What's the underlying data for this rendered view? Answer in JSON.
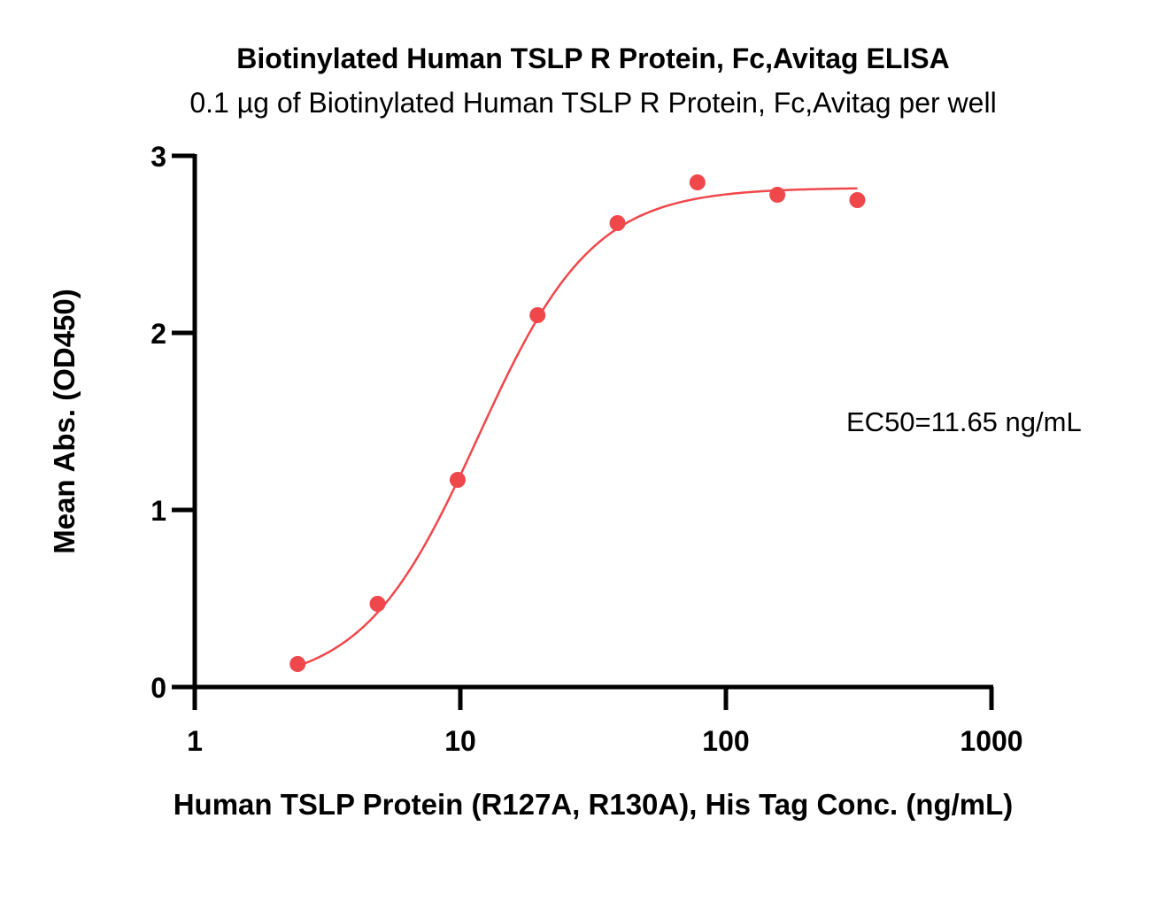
{
  "chart_data": {
    "type": "scatter",
    "title": "Biotinylated Human TSLP R Protein, Fc,Avitag ELISA",
    "subtitle": "0.1 µg of Biotinylated Human TSLP R Protein, Fc,Avitag per well",
    "xlabel": "Human TSLP Protein (R127A, R130A), His Tag Conc. (ng/mL)",
    "ylabel": "Mean Abs. (OD450)",
    "x_scale": "log",
    "xlim": [
      1,
      1000
    ],
    "ylim": [
      0,
      3
    ],
    "x_ticks": [
      1,
      10,
      100,
      1000
    ],
    "x_tick_labels": [
      "1",
      "10",
      "100",
      "1000"
    ],
    "y_ticks": [
      0,
      1,
      2,
      3
    ],
    "y_tick_labels": [
      "0",
      "1",
      "2",
      "3"
    ],
    "grid": false,
    "color": "#f0474b",
    "series": [
      {
        "x": [
          2.44,
          4.88,
          9.77,
          19.53,
          39.06,
          78.13,
          156.25,
          312.5
        ],
        "y": [
          0.13,
          0.47,
          1.17,
          2.1,
          2.62,
          2.85,
          2.78,
          2.75
        ]
      }
    ],
    "fit": {
      "type": "4PL",
      "bottom": 0.0,
      "top": 2.82,
      "ec50": 11.65,
      "hill": 2.0,
      "x_range": [
        2.44,
        312.5
      ]
    },
    "annotation": "EC50=11.65 ng/mL"
  }
}
